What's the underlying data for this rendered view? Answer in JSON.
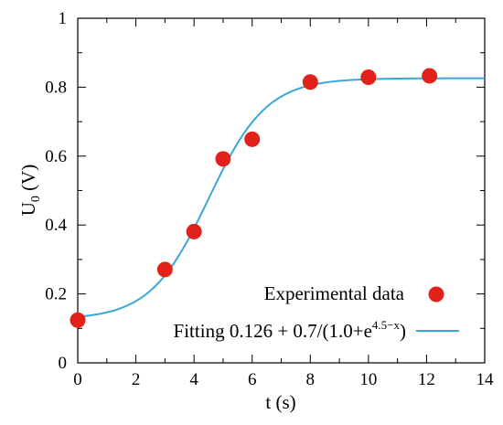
{
  "chart_data": {
    "type": "scatter",
    "xlabel": "t (s)",
    "ylabel_main": "U",
    "ylabel_sub": "0",
    "ylabel_unit": " (V)",
    "xlim": [
      0,
      14
    ],
    "ylim": [
      0,
      1
    ],
    "x_ticks": [
      0,
      2,
      4,
      6,
      8,
      10,
      12,
      14
    ],
    "y_ticks": [
      0,
      0.2,
      0.4,
      0.6,
      0.8,
      1
    ],
    "x_tick_labels": [
      "0",
      "2",
      "4",
      "6",
      "8",
      "10",
      "12",
      "14"
    ],
    "y_tick_labels": [
      "0",
      "0.2",
      "0.4",
      "0.6",
      "0.8",
      "1"
    ],
    "grid": false,
    "legend_position": "bottom-right",
    "series": [
      {
        "name": "Experimental data",
        "kind": "scatter",
        "color": "#e0221b",
        "x": [
          0,
          3,
          4,
          5,
          6,
          8,
          10,
          12.1
        ],
        "y": [
          0.124,
          0.271,
          0.381,
          0.592,
          0.649,
          0.815,
          0.829,
          0.833
        ]
      },
      {
        "name_prefix": "Fitting 0.126 + 0.7/(1.0+e",
        "name_sup": "4.5−x",
        "name_suffix": ")",
        "kind": "line",
        "color": "#3aa7d9",
        "formula": {
          "base": 0.126,
          "amplitude": 0.7,
          "midpoint": 4.5
        }
      }
    ]
  }
}
